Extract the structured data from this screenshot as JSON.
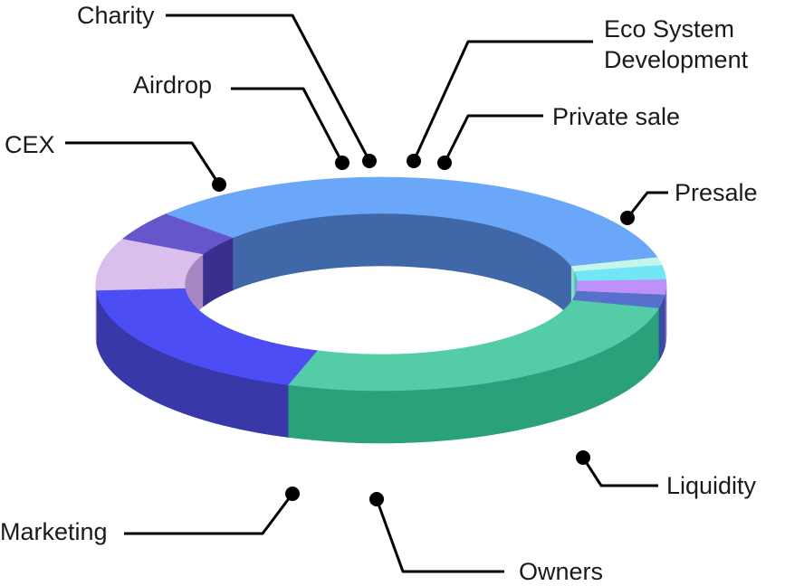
{
  "chart_data": {
    "type": "pie",
    "style": "3d-donut",
    "legend": "none",
    "slices": [
      {
        "label": "Presale",
        "value": 27.0,
        "top": "#55CCA8",
        "side": "#2AA07B"
      },
      {
        "label": "Liquidity",
        "value": 19.0,
        "top": "#4D4DF5",
        "side": "#3838A8"
      },
      {
        "label": "Owners",
        "value": 8.0,
        "top": "#D9C0EC",
        "side": "#A687C4"
      },
      {
        "label": "Marketing",
        "value": 4.5,
        "top": "#6556CC",
        "side": "#3A2F8E"
      },
      {
        "label": "CEX",
        "value": 35.0,
        "top": "#6BA7F9",
        "side": "#4068A8"
      },
      {
        "label": "Airdrop",
        "value": 1.2,
        "top": "#C6F6EA",
        "side": "#8BDCC5"
      },
      {
        "label": "Charity",
        "value": 2.2,
        "top": "#73E6F6",
        "side": "#58B6CB"
      },
      {
        "label": "Eco System Development",
        "value": 2.3,
        "top": "#BF91F8",
        "side": "#8D64C9"
      },
      {
        "label": "Private sale",
        "value": 2.0,
        "top": "#5670CC",
        "side": "#354E9E"
      }
    ]
  },
  "labels": {
    "charity": "Charity",
    "airdrop": "Airdrop",
    "cex": "CEX",
    "eco_line1": "Eco System",
    "eco_line2": "Development",
    "private_sale": "Private sale",
    "presale": "Presale",
    "liquidity": "Liquidity",
    "marketing": "Marketing",
    "owners": "Owners"
  }
}
